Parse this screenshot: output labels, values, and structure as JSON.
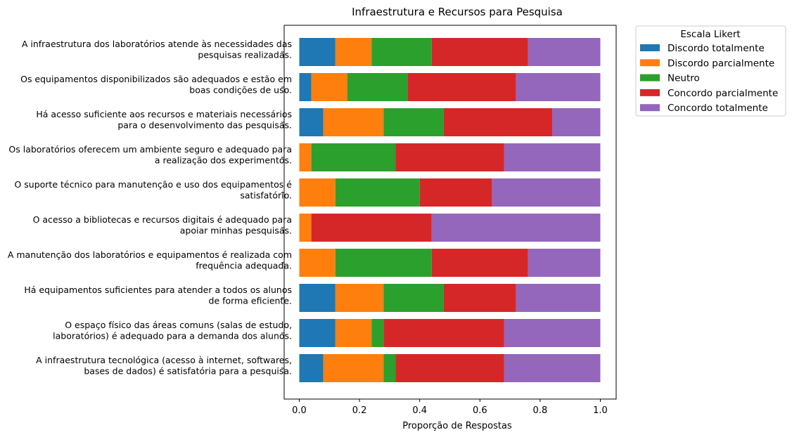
{
  "chart_data": {
    "type": "bar",
    "orientation": "horizontal",
    "stacked": true,
    "title": "Infraestrutura e Recursos para Pesquisa",
    "xlabel": "Proporção de Respostas",
    "ylabel": "",
    "xlim": [
      0,
      1.05
    ],
    "xticks": [
      "0.0",
      "0.2",
      "0.4",
      "0.6",
      "0.8",
      "1.0"
    ],
    "grid": false,
    "legend": {
      "title": "Escala Likert",
      "placement": "outside-top-right"
    },
    "categories": [
      [
        "A infraestrutura dos laboratórios atende às necessidades das",
        "pesquisas realizadas."
      ],
      [
        "Os equipamentos disponibilizados são adequados e estão em",
        "boas condições de uso."
      ],
      [
        "Há acesso suficiente aos recursos e materiais necessários",
        "para o desenvolvimento das pesquisas."
      ],
      [
        "Os laboratórios oferecem um ambiente seguro e adequado para",
        "a realização dos experimentos."
      ],
      [
        "O suporte técnico para manutenção e uso dos equipamentos é",
        "satisfatório."
      ],
      [
        "O acesso a bibliotecas e recursos digitais é adequado para",
        "apoiar minhas pesquisas."
      ],
      [
        "A manutenção dos laboratórios e equipamentos é realizada com",
        "frequência adequada."
      ],
      [
        "Há equipamentos suficientes para atender a todos os alunos",
        "de forma eficiente."
      ],
      [
        "O espaço físico das áreas comuns (salas de estudo,",
        "laboratórios) é adequado para a demanda dos alunos."
      ],
      [
        "A infraestrutura tecnológica (acesso à internet, softwares,",
        "bases de dados) é satisfatória para a pesquisa."
      ]
    ],
    "series": [
      {
        "name": "Discordo totalmente",
        "color": "#1f77b4",
        "values": [
          0.12,
          0.04,
          0.08,
          0.0,
          0.0,
          0.0,
          0.0,
          0.12,
          0.12,
          0.08
        ]
      },
      {
        "name": "Discordo parcialmente",
        "color": "#ff7f0e",
        "values": [
          0.12,
          0.12,
          0.2,
          0.04,
          0.12,
          0.04,
          0.12,
          0.16,
          0.12,
          0.2
        ]
      },
      {
        "name": "Neutro",
        "color": "#2ca02c",
        "values": [
          0.2,
          0.2,
          0.2,
          0.28,
          0.28,
          0.0,
          0.32,
          0.2,
          0.04,
          0.04
        ]
      },
      {
        "name": "Concordo parcialmente",
        "color": "#d62728",
        "values": [
          0.32,
          0.36,
          0.36,
          0.36,
          0.24,
          0.4,
          0.32,
          0.24,
          0.4,
          0.36
        ]
      },
      {
        "name": "Concordo totalmente",
        "color": "#9467bd",
        "values": [
          0.24,
          0.28,
          0.16,
          0.32,
          0.36,
          0.56,
          0.24,
          0.28,
          0.32,
          0.32
        ]
      }
    ]
  }
}
